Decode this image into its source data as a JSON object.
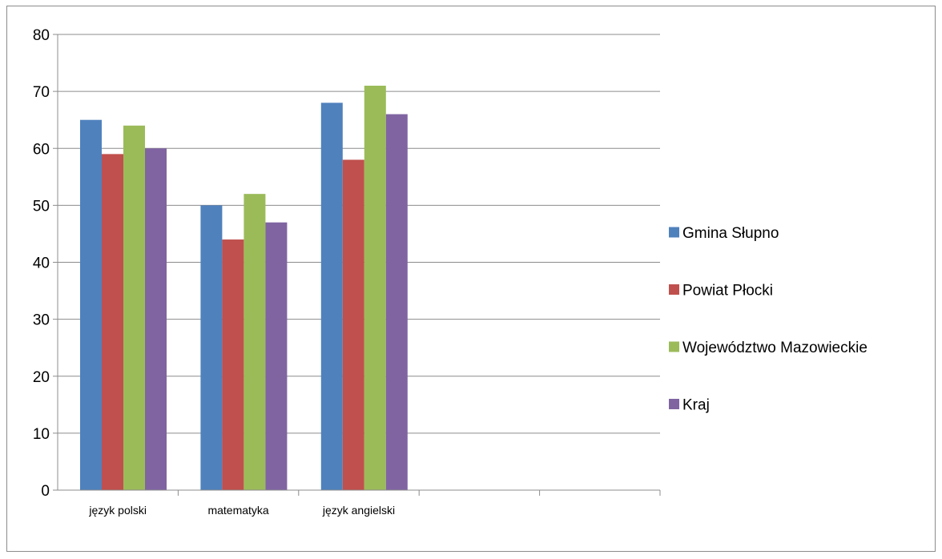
{
  "chart_data": {
    "type": "bar",
    "categories": [
      "język polski",
      "matematyka",
      "język angielski",
      "",
      ""
    ],
    "series": [
      {
        "name": "Gmina Słupno",
        "color": "#4f81bd",
        "values": [
          65,
          50,
          68,
          null,
          null
        ]
      },
      {
        "name": "Powiat Płocki",
        "color": "#c0504d",
        "values": [
          59,
          44,
          58,
          null,
          null
        ]
      },
      {
        "name": "Województwo Mazowieckie",
        "color": "#9bbb59",
        "values": [
          64,
          52,
          71,
          null,
          null
        ]
      },
      {
        "name": "Kraj",
        "color": "#8064a2",
        "values": [
          60,
          47,
          66,
          null,
          null
        ]
      }
    ],
    "ylim": [
      0,
      80
    ],
    "yticks": [
      0,
      10,
      20,
      30,
      40,
      50,
      60,
      70,
      80
    ],
    "grid": true,
    "legend": "right"
  }
}
